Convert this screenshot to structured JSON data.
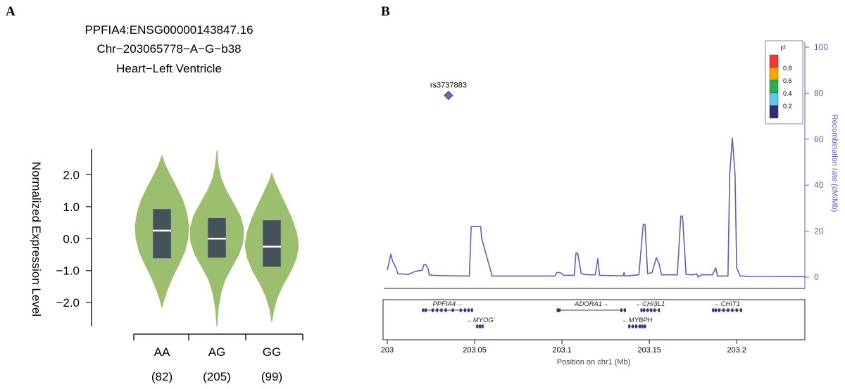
{
  "panel_a": {
    "letter": "A",
    "title_lines": [
      "PPFIA4:ENSG00000143847.16",
      "Chr−203065778−A−G−b38",
      "Heart−Left Ventricle"
    ],
    "colors": {
      "violin": "#9cbf6f",
      "box": "#44525a",
      "median": "#ffffff"
    }
  },
  "panel_b": {
    "letter": "B",
    "colors": {
      "line": "#5a63b4",
      "gene": "#2e3575",
      "snp": "#7f5fae"
    }
  },
  "chart_data": [
    {
      "type": "violin",
      "ylabel": "Normalized Expression Level",
      "ylim": [
        -2.7,
        2.8
      ],
      "y_ticks": [
        {
          "value": 2.0,
          "label": "2.0"
        },
        {
          "value": 1.0,
          "label": "1.0"
        },
        {
          "value": 0.0,
          "label": "0.0"
        },
        {
          "value": -1.0,
          "label": "−1.0"
        },
        {
          "value": -2.0,
          "label": "−2.0"
        }
      ],
      "categories": [
        "AA",
        "AG",
        "GG"
      ],
      "counts": [
        "(82)",
        "(205)",
        "(99)"
      ],
      "violins": [
        {
          "category": "AA",
          "min": -2.15,
          "max": 2.6,
          "q1": -0.62,
          "median": 0.25,
          "q3": 0.93,
          "profile": [
            [
              2.6,
              0.0
            ],
            [
              2.3,
              0.12
            ],
            [
              2.0,
              0.3
            ],
            [
              1.6,
              0.55
            ],
            [
              1.2,
              0.78
            ],
            [
              0.8,
              0.93
            ],
            [
              0.4,
              1.0
            ],
            [
              0.0,
              0.97
            ],
            [
              -0.4,
              0.85
            ],
            [
              -0.8,
              0.64
            ],
            [
              -1.2,
              0.4
            ],
            [
              -1.6,
              0.2
            ],
            [
              -1.9,
              0.08
            ],
            [
              -2.15,
              0.0
            ]
          ]
        },
        {
          "category": "AG",
          "min": -2.75,
          "max": 2.75,
          "q1": -0.6,
          "median": 0.0,
          "q3": 0.65,
          "profile": [
            [
              2.75,
              0.0
            ],
            [
              2.3,
              0.05
            ],
            [
              1.9,
              0.15
            ],
            [
              1.5,
              0.35
            ],
            [
              1.1,
              0.62
            ],
            [
              0.7,
              0.88
            ],
            [
              0.3,
              1.0
            ],
            [
              -0.1,
              0.98
            ],
            [
              -0.5,
              0.82
            ],
            [
              -0.9,
              0.55
            ],
            [
              -1.3,
              0.3
            ],
            [
              -1.7,
              0.15
            ],
            [
              -2.2,
              0.05
            ],
            [
              -2.75,
              0.0
            ]
          ]
        },
        {
          "category": "GG",
          "min": -2.6,
          "max": 2.05,
          "q1": -0.88,
          "median": -0.25,
          "q3": 0.58,
          "profile": [
            [
              2.05,
              0.0
            ],
            [
              1.8,
              0.1
            ],
            [
              1.4,
              0.32
            ],
            [
              1.0,
              0.55
            ],
            [
              0.6,
              0.76
            ],
            [
              0.2,
              0.92
            ],
            [
              -0.2,
              1.0
            ],
            [
              -0.6,
              0.92
            ],
            [
              -1.0,
              0.72
            ],
            [
              -1.4,
              0.45
            ],
            [
              -1.8,
              0.22
            ],
            [
              -2.2,
              0.08
            ],
            [
              -2.6,
              0.0
            ]
          ]
        }
      ]
    },
    {
      "type": "line",
      "xlabel": "Position on chr1 (Mb)",
      "ylabel": "Recombination rate (cM/Mb)",
      "xlim": [
        203.0,
        203.239
      ],
      "ylim": [
        0,
        100
      ],
      "x_ticks": [
        {
          "value": 203.0,
          "label": "203"
        },
        {
          "value": 203.05,
          "label": "203.05"
        },
        {
          "value": 203.1,
          "label": "203.1"
        },
        {
          "value": 203.15,
          "label": "203.15"
        },
        {
          "value": 203.2,
          "label": "203.2"
        }
      ],
      "y_ticks": [
        {
          "value": 0,
          "label": "0"
        },
        {
          "value": 20,
          "label": "20"
        },
        {
          "value": 40,
          "label": "40"
        },
        {
          "value": 60,
          "label": "60"
        },
        {
          "value": 80,
          "label": "80"
        },
        {
          "value": 100,
          "label": "100"
        }
      ],
      "series": [
        {
          "points": [
            [
              203.0,
              3
            ],
            [
              203.002,
              10
            ],
            [
              203.003,
              7
            ],
            [
              203.005,
              4
            ],
            [
              203.006,
              1.5
            ],
            [
              203.012,
              1.2
            ],
            [
              203.016,
              2.5
            ],
            [
              203.02,
              3
            ],
            [
              203.021,
              5.5
            ],
            [
              203.022,
              5.5
            ],
            [
              203.0235,
              3.5
            ],
            [
              203.024,
              1
            ],
            [
              203.026,
              0.8
            ],
            [
              203.034,
              0.6
            ],
            [
              203.047,
              0.5
            ],
            [
              203.048,
              22
            ],
            [
              203.0535,
              22
            ],
            [
              203.054,
              17
            ],
            [
              203.058,
              6
            ],
            [
              203.06,
              0.5
            ],
            [
              203.096,
              0.5
            ],
            [
              203.097,
              2
            ],
            [
              203.099,
              2
            ],
            [
              203.101,
              0.8
            ],
            [
              203.107,
              0.8
            ],
            [
              203.108,
              10.5
            ],
            [
              203.109,
              10.5
            ],
            [
              203.111,
              1.5
            ],
            [
              203.115,
              1
            ],
            [
              203.119,
              1
            ],
            [
              203.1205,
              8
            ],
            [
              203.1215,
              0.8
            ],
            [
              203.132,
              0.6
            ],
            [
              203.135,
              0.6
            ],
            [
              203.1355,
              2
            ],
            [
              203.136,
              0.5
            ],
            [
              203.144,
              1
            ],
            [
              203.1465,
              23
            ],
            [
              203.1475,
              23
            ],
            [
              203.149,
              1.5
            ],
            [
              203.1515,
              2
            ],
            [
              203.154,
              8.5
            ],
            [
              203.1555,
              6
            ],
            [
              203.157,
              1
            ],
            [
              203.166,
              1
            ],
            [
              203.168,
              26.5
            ],
            [
              203.169,
              26.5
            ],
            [
              203.171,
              1.2
            ],
            [
              203.175,
              1
            ],
            [
              203.177,
              1.5
            ],
            [
              203.178,
              0
            ],
            [
              203.18,
              1
            ],
            [
              203.186,
              1
            ],
            [
              203.188,
              4
            ],
            [
              203.189,
              0.5
            ],
            [
              203.195,
              0.5
            ],
            [
              203.196,
              45
            ],
            [
              203.1975,
              60.5
            ],
            [
              203.199,
              45
            ],
            [
              203.2,
              4
            ],
            [
              203.202,
              0.5
            ],
            [
              203.21,
              0.3
            ],
            [
              203.239,
              0.2
            ]
          ]
        }
      ],
      "snp": {
        "label": "rs3737883",
        "x": 203.035,
        "y": 79
      },
      "legend": {
        "title": "r²",
        "position": "top-right",
        "entries": [
          {
            "label": "0.8",
            "color": "#ff3333"
          },
          {
            "label": "0.6",
            "color": "#ffa500"
          },
          {
            "label": "0.4",
            "color": "#22b14c"
          },
          {
            "label": "0.2",
            "color": "#5ec8f0"
          },
          {
            "label": "",
            "color": "#2e2e7a"
          }
        ]
      },
      "genes": [
        {
          "name": "PPFIA4",
          "arrow": "right",
          "start": 203.0205,
          "end": 203.0485,
          "row": 0,
          "exons": [
            203.0205,
            203.022,
            203.026,
            203.0285,
            203.031,
            203.0335,
            203.0375,
            203.042,
            203.0445,
            203.0465,
            203.0485
          ]
        },
        {
          "name": "MYOG",
          "arrow": "left",
          "start": 203.0515,
          "end": 203.0545,
          "row": 1,
          "exons": [
            203.0515,
            203.053,
            203.0545
          ]
        },
        {
          "name": "ADORA1",
          "arrow": "right",
          "start": 203.0975,
          "end": 203.1365,
          "row": 0,
          "exons": [
            203.0975,
            203.0985,
            203.134,
            203.136
          ]
        },
        {
          "name": "CHI3L1",
          "arrow": "left",
          "start": 203.1455,
          "end": 203.1555,
          "row": 0,
          "exons": [
            203.1455,
            203.147,
            203.149,
            203.151,
            203.153,
            203.1555
          ]
        },
        {
          "name": "MYBPH",
          "arrow": "left",
          "start": 203.1385,
          "end": 203.1475,
          "row": 1,
          "exons": [
            203.1385,
            203.1405,
            203.1425,
            203.1445,
            203.146,
            203.1475
          ]
        },
        {
          "name": "CHIT1",
          "arrow": "left",
          "start": 203.1865,
          "end": 203.2025,
          "row": 0,
          "exons": [
            203.1865,
            203.188,
            203.19,
            203.1925,
            203.195,
            203.1975,
            203.2,
            203.2025
          ]
        }
      ]
    }
  ]
}
